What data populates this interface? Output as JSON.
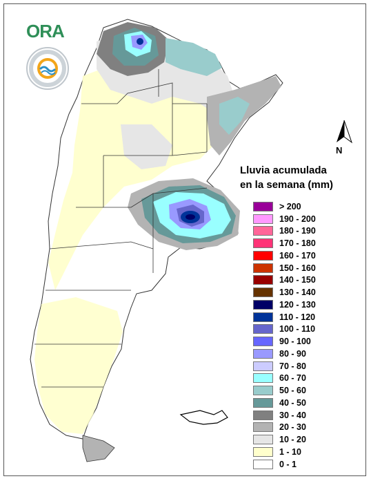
{
  "logo": {
    "text": "ORA",
    "icon": "ora-logo"
  },
  "seal": {
    "icon": "smn-seal-icon"
  },
  "north_arrow": {
    "label": "N",
    "icon": "north-arrow-icon"
  },
  "legend": {
    "title_line1": "Lluvia acumulada",
    "title_line2": "en la semana (mm)",
    "classes": [
      {
        "label": "> 200",
        "color": "#990099"
      },
      {
        "label": "190 - 200",
        "color": "#ff99ff"
      },
      {
        "label": "180 - 190",
        "color": "#ff6699"
      },
      {
        "label": "170 - 180",
        "color": "#ff3377"
      },
      {
        "label": "160 - 170",
        "color": "#ff0000"
      },
      {
        "label": "150 - 160",
        "color": "#cc3300"
      },
      {
        "label": "140 - 150",
        "color": "#990000"
      },
      {
        "label": "130 - 140",
        "color": "#663300"
      },
      {
        "label": "120 - 130",
        "color": "#000066"
      },
      {
        "label": "110 - 120",
        "color": "#003399"
      },
      {
        "label": "100 - 110",
        "color": "#6666cc"
      },
      {
        "label": "90 - 100",
        "color": "#6666ff"
      },
      {
        "label": "80 - 90",
        "color": "#9999ff"
      },
      {
        "label": "70 - 80",
        "color": "#ccccff"
      },
      {
        "label": "60 - 70",
        "color": "#99ffff"
      },
      {
        "label": "50 - 60",
        "color": "#99cccc"
      },
      {
        "label": "40 - 50",
        "color": "#669999"
      },
      {
        "label": "30 - 40",
        "color": "#808080"
      },
      {
        "label": "20 - 30",
        "color": "#b3b3b3"
      },
      {
        "label": "10 - 20",
        "color": "#e6e6e6"
      },
      {
        "label": "1 - 10",
        "color": "#ffffcc"
      },
      {
        "label": "0 - 1",
        "color": "#ffffff"
      }
    ]
  },
  "map": {
    "base_color": "#ffffff",
    "border_color": "#333333"
  }
}
